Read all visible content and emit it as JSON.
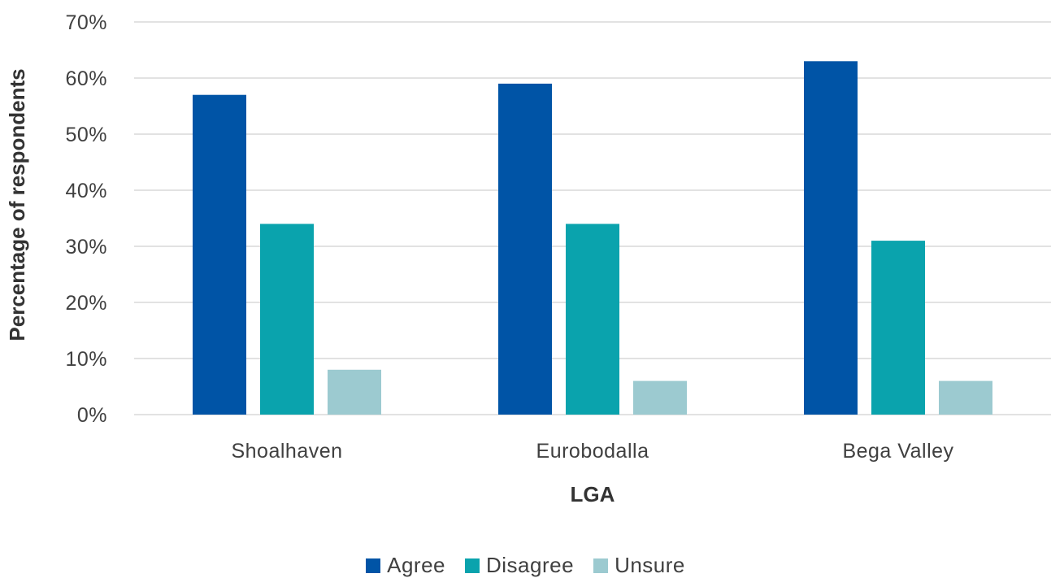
{
  "chart_data": {
    "type": "bar",
    "categories": [
      "Shoalhaven",
      "Eurobodalla",
      "Bega Valley"
    ],
    "series": [
      {
        "name": "Agree",
        "color": "#0054a6",
        "values": [
          57,
          59,
          63
        ]
      },
      {
        "name": "Disagree",
        "color": "#0aa3ad",
        "values": [
          34,
          34,
          31
        ]
      },
      {
        "name": "Unsure",
        "color": "#9ccad0",
        "values": [
          8,
          6,
          6
        ]
      }
    ],
    "xlabel": "LGA",
    "ylabel": "Percentage of respondents",
    "ylim": [
      0,
      70
    ],
    "yticks": [
      "0%",
      "10%",
      "20%",
      "30%",
      "40%",
      "50%",
      "60%",
      "70%"
    ],
    "grid": true,
    "legend_position": "bottom"
  }
}
